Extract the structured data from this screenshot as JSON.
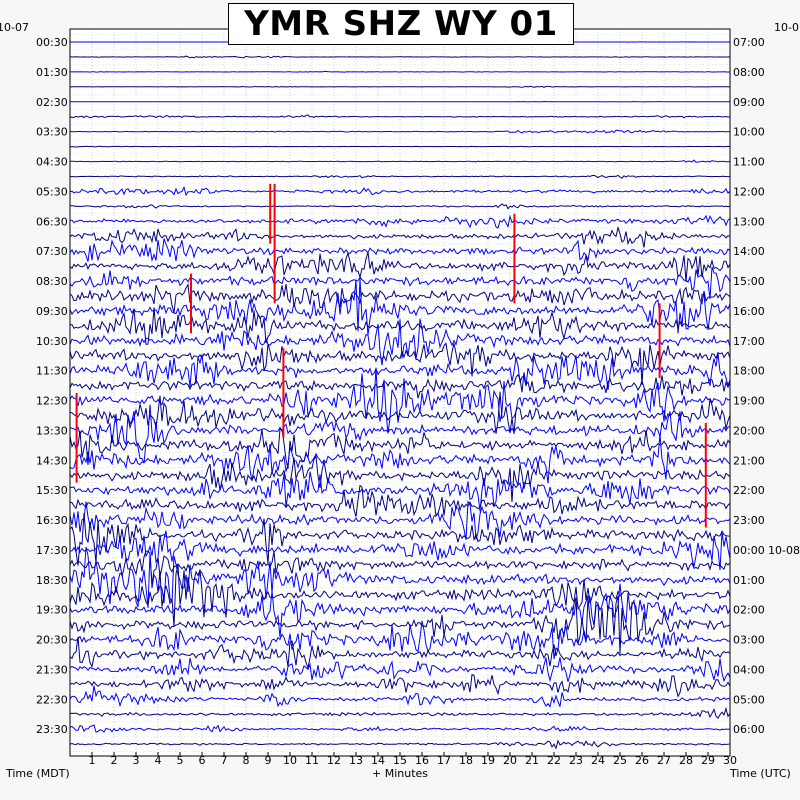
{
  "chart_data": {
    "type": "line",
    "title": "YMR SHZ WY 01",
    "xlabel": "+ Minutes",
    "left_axis_title": "Time (MDT)",
    "right_axis_title": "Time (UTC)",
    "left_date_label": "10-07",
    "right_date_label": "10-0",
    "second_date_label": "10-08",
    "xlim": [
      0,
      30
    ],
    "x_ticks": [
      "1",
      "2",
      "3",
      "4",
      "5",
      "6",
      "7",
      "8",
      "9",
      "10",
      "11",
      "12",
      "13",
      "14",
      "15",
      "16",
      "17",
      "18",
      "19",
      "20",
      "21",
      "22",
      "23",
      "24",
      "25",
      "26",
      "27",
      "28",
      "29",
      "30"
    ],
    "left_time_labels": [
      "00:30",
      "01:30",
      "02:30",
      "03:30",
      "04:30",
      "05:30",
      "06:30",
      "07:30",
      "08:30",
      "09:30",
      "10:30",
      "11:30",
      "12:30",
      "13:30",
      "14:30",
      "15:30",
      "16:30",
      "17:30",
      "18:30",
      "19:30",
      "20:30",
      "21:30",
      "22:30",
      "23:30"
    ],
    "right_time_labels": [
      "07:00",
      "08:00",
      "09:00",
      "10:00",
      "11:00",
      "12:00",
      "13:00",
      "14:00",
      "15:00",
      "16:00",
      "17:00",
      "18:00",
      "19:00",
      "20:00",
      "21:00",
      "22:00",
      "23:00",
      "00:00",
      "01:00",
      "02:00",
      "03:00",
      "04:00",
      "05:00",
      "06:00"
    ],
    "trace_count": 48,
    "minutes_per_trace": 30,
    "trace_colors": [
      "#0000ff",
      "#000080"
    ],
    "clip_color": "#ff0000",
    "grid": true,
    "series": [
      {
        "amplitude": [
          0.02,
          0.15,
          0.12,
          0.1,
          0.05,
          0.3,
          0.25,
          0.12,
          0.22,
          0.3,
          0.9,
          0.5,
          1.4,
          1.6,
          2.2,
          2.4,
          3.0,
          3.1,
          3.4,
          3.5,
          3.5,
          3.6,
          3.6,
          3.5,
          3.5,
          3.4,
          3.4,
          3.3,
          3.4,
          3.3,
          3.3,
          3.5,
          3.2,
          3.1,
          3.3,
          3.0,
          3.2,
          3.4,
          3.1,
          2.9,
          2.7,
          2.5,
          2.1,
          1.8,
          1.3,
          1.0,
          0.7,
          0.6
        ]
      }
    ]
  }
}
